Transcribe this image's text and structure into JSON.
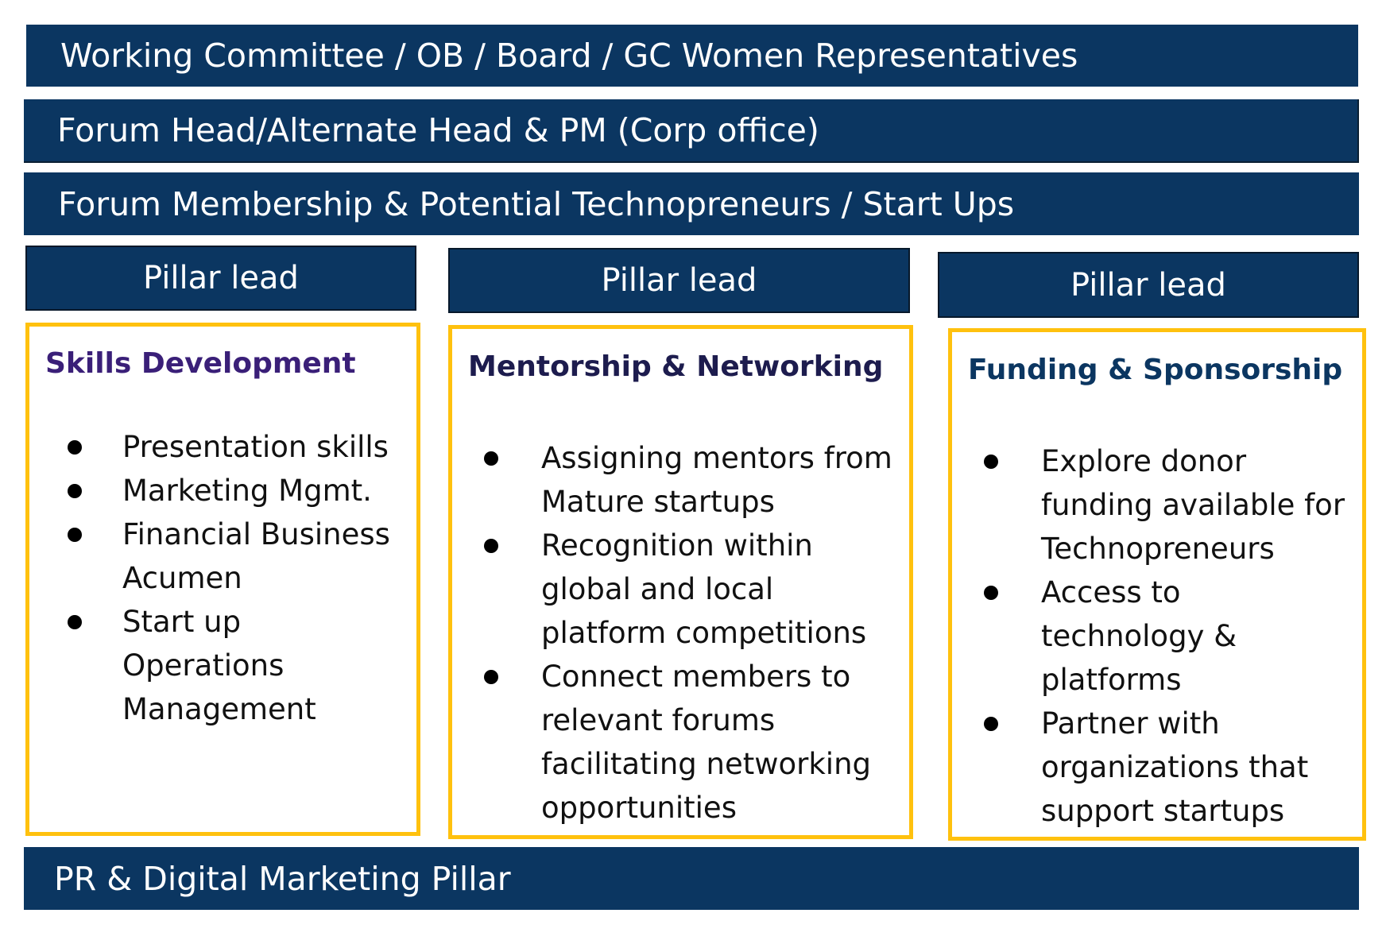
{
  "colors": {
    "navy": "#0b3661",
    "gold_border": "#ffc10e",
    "purple_title": "#3a1f78",
    "dark_title": "#1d1c4e",
    "blue_title": "#0b3661"
  },
  "top_bars": [
    {
      "label": "Working Committee / OB / Board / GC Women Representatives"
    },
    {
      "label": "Forum Head/Alternate Head & PM (Corp office)"
    },
    {
      "label": "Forum Membership & Potential Technopreneurs / Start Ups"
    }
  ],
  "pillars": [
    {
      "lead": "Pillar lead",
      "title": "Skills Development",
      "items": [
        {
          "text": "Presentation skills"
        },
        {
          "text": "Marketing Mgmt."
        },
        {
          "text": "Financial Business Acumen"
        },
        {
          "text": "Start up Operations Management"
        }
      ]
    },
    {
      "lead": "Pillar lead",
      "title": "Mentorship & Networking",
      "items": [
        {
          "text": "Assigning mentors from Mature startups"
        },
        {
          "text": "Recognition within global and local platform competitions"
        },
        {
          "text": "Connect members to relevant forums facilitating networking opportunities"
        }
      ]
    },
    {
      "lead": "Pillar lead",
      "title": "Funding & Sponsorship",
      "items": [
        {
          "text": "Explore donor funding available for Technopreneurs"
        },
        {
          "text": "Access to technology & platforms"
        },
        {
          "text": "Partner with organizations that support startups"
        }
      ]
    }
  ],
  "bottom_bar": {
    "label": "PR & Digital Marketing Pillar"
  }
}
